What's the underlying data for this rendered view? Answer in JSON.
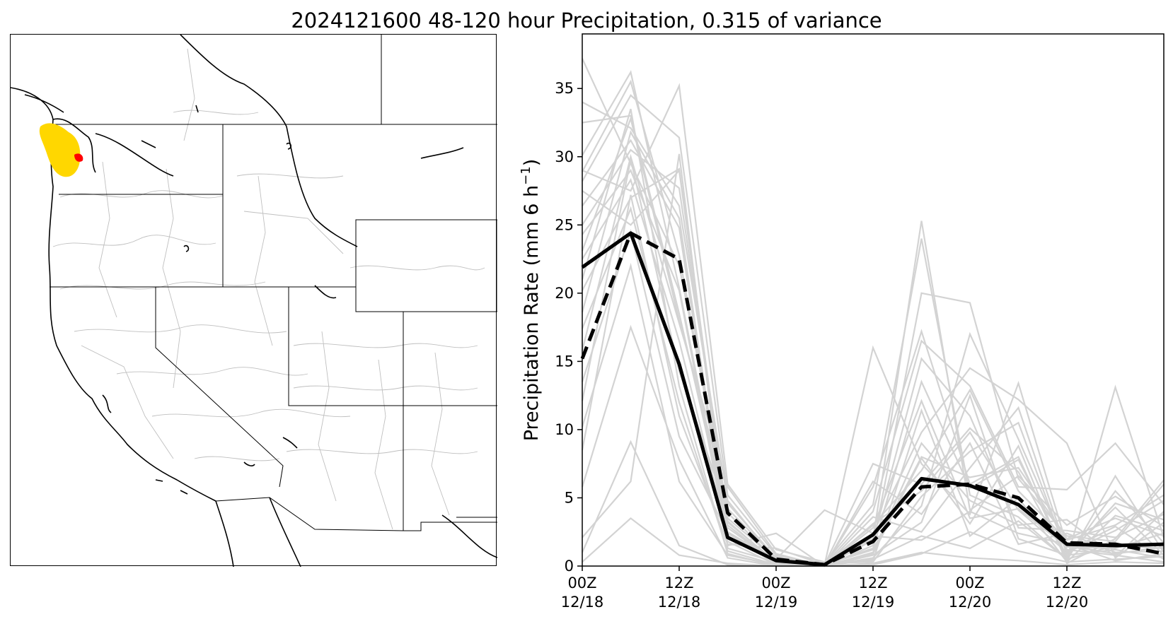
{
  "title": "2024121600 48-120 hour Precipitation, 0.315 of variance",
  "map": {
    "highlight_colors": {
      "region": "#ffd700",
      "hotspot": "#ff0000"
    },
    "outline_color": "#000000",
    "basin_color": "#bfbfbf"
  },
  "chart_data": {
    "type": "line",
    "ylabel": "Precipitation Rate (mm 6 h",
    "ylabel_sup": "−1",
    "ylabel_close": ")",
    "ylim": [
      0,
      39
    ],
    "xlim": [
      0,
      6
    ],
    "grid": false,
    "x": [
      0,
      0.5,
      1,
      1.5,
      2,
      2.5,
      3,
      3.5,
      4,
      4.5,
      5,
      5.5,
      6
    ],
    "x_tick_positions": [
      0,
      1,
      2,
      3,
      4,
      5
    ],
    "x_tick_labels": [
      [
        "00Z",
        "12/18"
      ],
      [
        "12Z",
        "12/18"
      ],
      [
        "00Z",
        "12/19"
      ],
      [
        "12Z",
        "12/19"
      ],
      [
        "00Z",
        "12/20"
      ],
      [
        "12Z",
        "12/20"
      ]
    ],
    "y_ticks": [
      0,
      5,
      10,
      15,
      20,
      25,
      30,
      35
    ],
    "series": [
      {
        "style": "solid",
        "color": "#000000",
        "values": [
          21.9,
          24.4,
          14.8,
          2.1,
          0.4,
          0.1,
          2.3,
          6.4,
          5.9,
          4.5,
          1.6,
          1.5,
          1.6
        ]
      },
      {
        "style": "dashed",
        "color": "#000000",
        "values": [
          15.2,
          24.4,
          22.5,
          3.9,
          0.5,
          0.1,
          1.8,
          5.8,
          6.0,
          5.0,
          1.7,
          1.6,
          0.9
        ]
      }
    ],
    "ensemble_color": "#d3d3d3",
    "ensemble": [
      [
        37.2,
        29.5,
        22.0,
        4.2,
        0.6,
        0.1,
        1.2,
        8.0,
        6.5,
        7.2,
        2.0,
        3.5,
        2.2
      ],
      [
        32.5,
        33.0,
        18.5,
        3.0,
        0.2,
        0.0,
        3.1,
        5.5,
        9.8,
        4.1,
        1.0,
        2.6,
        4.8
      ],
      [
        30.1,
        36.2,
        20.4,
        2.5,
        0.4,
        0.0,
        0.8,
        3.2,
        12.5,
        2.0,
        0.8,
        1.2,
        0.6
      ],
      [
        29.0,
        27.5,
        35.2,
        6.0,
        1.2,
        0.3,
        2.0,
        25.3,
        4.1,
        6.6,
        3.0,
        5.1,
        2.9
      ],
      [
        28.2,
        34.5,
        31.4,
        5.2,
        0.8,
        0.1,
        16.0,
        7.5,
        3.8,
        13.4,
        1.5,
        0.9,
        1.4
      ],
      [
        27.5,
        25.0,
        29.0,
        2.8,
        0.3,
        0.2,
        4.5,
        24.0,
        5.2,
        3.6,
        0.5,
        13.1,
        2.1
      ],
      [
        26.4,
        31.2,
        24.8,
        1.5,
        2.4,
        0.0,
        1.5,
        20.0,
        19.3,
        6.4,
        2.2,
        1.8,
        6.0
      ],
      [
        25.0,
        30.5,
        27.7,
        3.5,
        0.5,
        4.1,
        2.4,
        9.8,
        14.5,
        12.2,
        9.0,
        0.6,
        3.2
      ],
      [
        24.3,
        29.0,
        20.2,
        1.8,
        0.1,
        0.0,
        5.8,
        17.2,
        6.0,
        8.0,
        0.4,
        6.6,
        1.0
      ],
      [
        23.1,
        32.8,
        18.0,
        4.6,
        0.6,
        0.1,
        3.0,
        7.0,
        12.9,
        5.5,
        1.9,
        3.0,
        5.2
      ],
      [
        22.5,
        28.3,
        16.5,
        2.2,
        0.2,
        0.0,
        0.6,
        4.4,
        17.0,
        9.3,
        1.2,
        0.8,
        0.3
      ],
      [
        21.0,
        33.5,
        13.2,
        0.9,
        0.0,
        0.0,
        1.9,
        15.2,
        11.0,
        2.8,
        2.6,
        2.1,
        3.8
      ],
      [
        20.2,
        27.0,
        29.1,
        3.2,
        0.3,
        0.2,
        0.3,
        5.1,
        8.4,
        10.5,
        0.9,
        4.3,
        0.8
      ],
      [
        18.6,
        31.8,
        25.5,
        2.0,
        0.7,
        0.0,
        2.8,
        12.1,
        3.5,
        4.2,
        1.4,
        1.3,
        2.4
      ],
      [
        17.4,
        26.2,
        12.0,
        1.1,
        0.1,
        0.1,
        7.5,
        6.0,
        10.1,
        6.9,
        0.6,
        5.5,
        1.7
      ],
      [
        15.8,
        30.0,
        17.8,
        5.8,
        0.9,
        0.0,
        1.0,
        9.0,
        4.8,
        3.0,
        3.4,
        0.7,
        4.0
      ],
      [
        13.5,
        24.5,
        9.5,
        2.4,
        0.2,
        0.0,
        3.6,
        2.5,
        7.2,
        11.6,
        1.1,
        2.9,
        0.5
      ],
      [
        12.1,
        29.8,
        14.3,
        3.9,
        0.4,
        0.3,
        0.4,
        11.4,
        2.2,
        5.0,
        0.3,
        3.7,
        2.6
      ],
      [
        10.2,
        22.0,
        6.2,
        0.8,
        0.1,
        0.0,
        6.2,
        3.8,
        9.0,
        1.6,
        2.4,
        1.0,
        1.1
      ],
      [
        8.5,
        27.2,
        11.0,
        1.6,
        1.3,
        0.1,
        1.3,
        13.5,
        5.7,
        7.8,
        0.7,
        4.6,
        3.4
      ],
      [
        5.8,
        17.5,
        7.8,
        0.6,
        0.0,
        0.0,
        2.2,
        1.9,
        4.0,
        2.4,
        1.6,
        0.4,
        0.9
      ],
      [
        2.1,
        6.2,
        30.2,
        1.3,
        0.3,
        0.0,
        0.9,
        7.9,
        3.1,
        8.8,
        0.2,
        2.0,
        6.3
      ],
      [
        0.3,
        3.5,
        0.8,
        0.2,
        0.0,
        0.0,
        0.2,
        1.0,
        0.6,
        0.4,
        0.1,
        0.3,
        0.2
      ],
      [
        1.0,
        9.1,
        1.5,
        0.1,
        0.0,
        0.0,
        0.5,
        2.2,
        1.3,
        3.3,
        0.5,
        1.5,
        1.3
      ],
      [
        34.0,
        32.1,
        26.4,
        4.8,
        0.4,
        0.0,
        0.1,
        0.9,
        2.5,
        1.1,
        0.3,
        0.5,
        0.7
      ],
      [
        28.9,
        35.5,
        22.8,
        3.3,
        0.2,
        0.1,
        4.0,
        16.5,
        13.2,
        5.8,
        5.6,
        9.0,
        4.5
      ]
    ]
  }
}
